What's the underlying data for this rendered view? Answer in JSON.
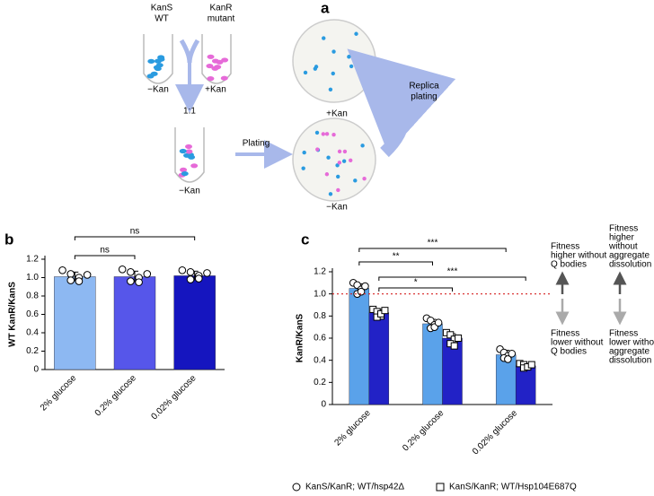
{
  "diagram": {
    "panel_label": "a",
    "tube_left_label": [
      "KanS",
      "WT"
    ],
    "tube_right_label": [
      "KanR",
      "mutant"
    ],
    "tube_left_medium": "−Kan",
    "tube_right_medium": "+Kan",
    "ratio": "1:1",
    "mixed_tube_medium": "−Kan",
    "plating": "Plating",
    "plate_top_medium": "+Kan",
    "plate_bottom_medium": "−Kan",
    "replica": [
      "Replica",
      "plating"
    ]
  },
  "chart_data": [
    {
      "type": "bar",
      "panel_label": "b",
      "ylabel": "WT KanR/KanS",
      "categories": [
        "2% glucose",
        "0.2% glucose",
        "0.02% glucose"
      ],
      "values": [
        1.01,
        1.01,
        1.02
      ],
      "errors": [
        0.05,
        0.06,
        0.05
      ],
      "colors": [
        "#8db8f2",
        "#5656ea",
        "#1515bf"
      ],
      "points": [
        [
          1.08,
          1.04,
          1.0,
          0.97,
          0.96,
          1.03
        ],
        [
          1.09,
          1.06,
          1.0,
          0.96,
          0.95,
          1.04
        ],
        [
          1.08,
          1.06,
          1.02,
          0.98,
          0.99,
          1.05
        ]
      ],
      "ylim": [
        0,
        1.2
      ],
      "yticks": [
        0,
        0.2,
        0.4,
        0.6,
        0.8,
        {
          "value": 1,
          "label": "1.0"
        },
        1.2
      ],
      "significance": [
        "ns",
        "ns"
      ]
    },
    {
      "type": "bar",
      "panel_label": "c",
      "ylabel": "KanR/KanS",
      "categories": [
        "2% glucose",
        "0.2% glucose",
        "0.02% glucose"
      ],
      "series": [
        {
          "name": "KanS/KanR; WT/hsp42Δ",
          "color": "#5aa2ea",
          "marker": "circle",
          "values": [
            1.05,
            0.73,
            0.45
          ],
          "errors": [
            0.04,
            0.04,
            0.04
          ],
          "points": [
            [
              1.1,
              1.08,
              1.04,
              1.0,
              1.02,
              1.07
            ],
            [
              0.78,
              0.76,
              0.72,
              0.69,
              0.7,
              0.74
            ],
            [
              0.5,
              0.47,
              0.44,
              0.42,
              0.41,
              0.46
            ]
          ]
        },
        {
          "name": "KanS/KanR; WT/Hsp104E687Q",
          "color": "#2222c6",
          "marker": "square",
          "values": [
            0.83,
            0.6,
            0.35
          ],
          "errors": [
            0.03,
            0.04,
            0.02
          ],
          "points": [
            [
              0.86,
              0.84,
              0.8,
              0.79,
              0.82,
              0.85
            ],
            [
              0.65,
              0.63,
              0.59,
              0.55,
              0.53,
              0.6
            ],
            [
              0.37,
              0.36,
              0.34,
              0.33,
              0.34,
              0.36
            ]
          ]
        }
      ],
      "reference_line": 1,
      "reference_color": "#d62020",
      "ylim": [
        0,
        1.2
      ],
      "yticks": [
        0,
        0.2,
        0.4,
        0.6,
        0.8,
        {
          "value": 1,
          "label": "1.0"
        },
        1.2
      ],
      "significance": [
        "***",
        "**",
        "***",
        "*"
      ],
      "annotations": {
        "higher_q": [
          "Fitness",
          "higher without",
          "Q bodies"
        ],
        "lower_q": [
          "Fitness",
          "lower without",
          "Q bodies"
        ],
        "higher_agg": [
          "Fitness",
          "higher",
          "without",
          "aggregate",
          "dissolution"
        ],
        "lower_agg": [
          "Fitness",
          "lower without",
          "aggregate",
          "dissolution"
        ]
      }
    }
  ]
}
